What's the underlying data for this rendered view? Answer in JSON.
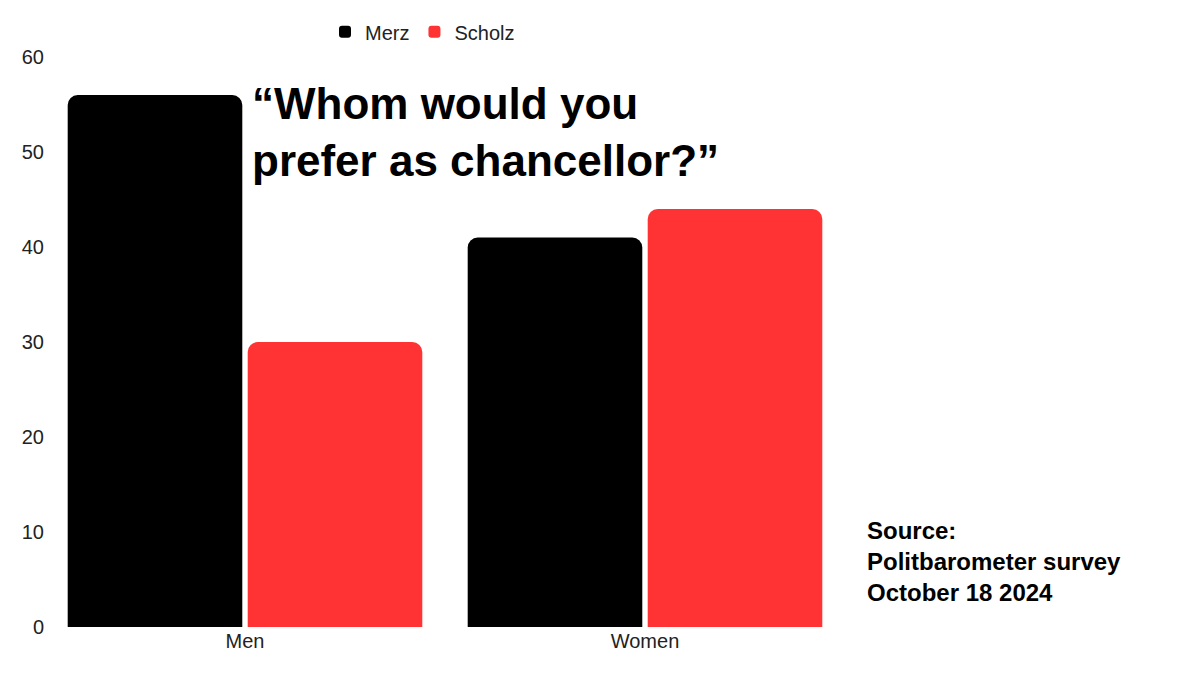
{
  "chart_data": {
    "type": "bar",
    "title": "“Whom would you prefer as chancellor?”",
    "categories": [
      "Men",
      "Women"
    ],
    "series": [
      {
        "name": "Merz",
        "color": "#000000",
        "values": [
          56,
          41
        ]
      },
      {
        "name": "Scholz",
        "color": "#ff3333",
        "values": [
          30,
          44
        ]
      }
    ],
    "ylim": [
      0,
      60
    ],
    "yticks": [
      0,
      10,
      20,
      30,
      40,
      50,
      60
    ],
    "grid": false,
    "legend": "top",
    "annotations": [
      "Source:",
      "Politbarometer survey",
      "October 18 2024"
    ]
  }
}
